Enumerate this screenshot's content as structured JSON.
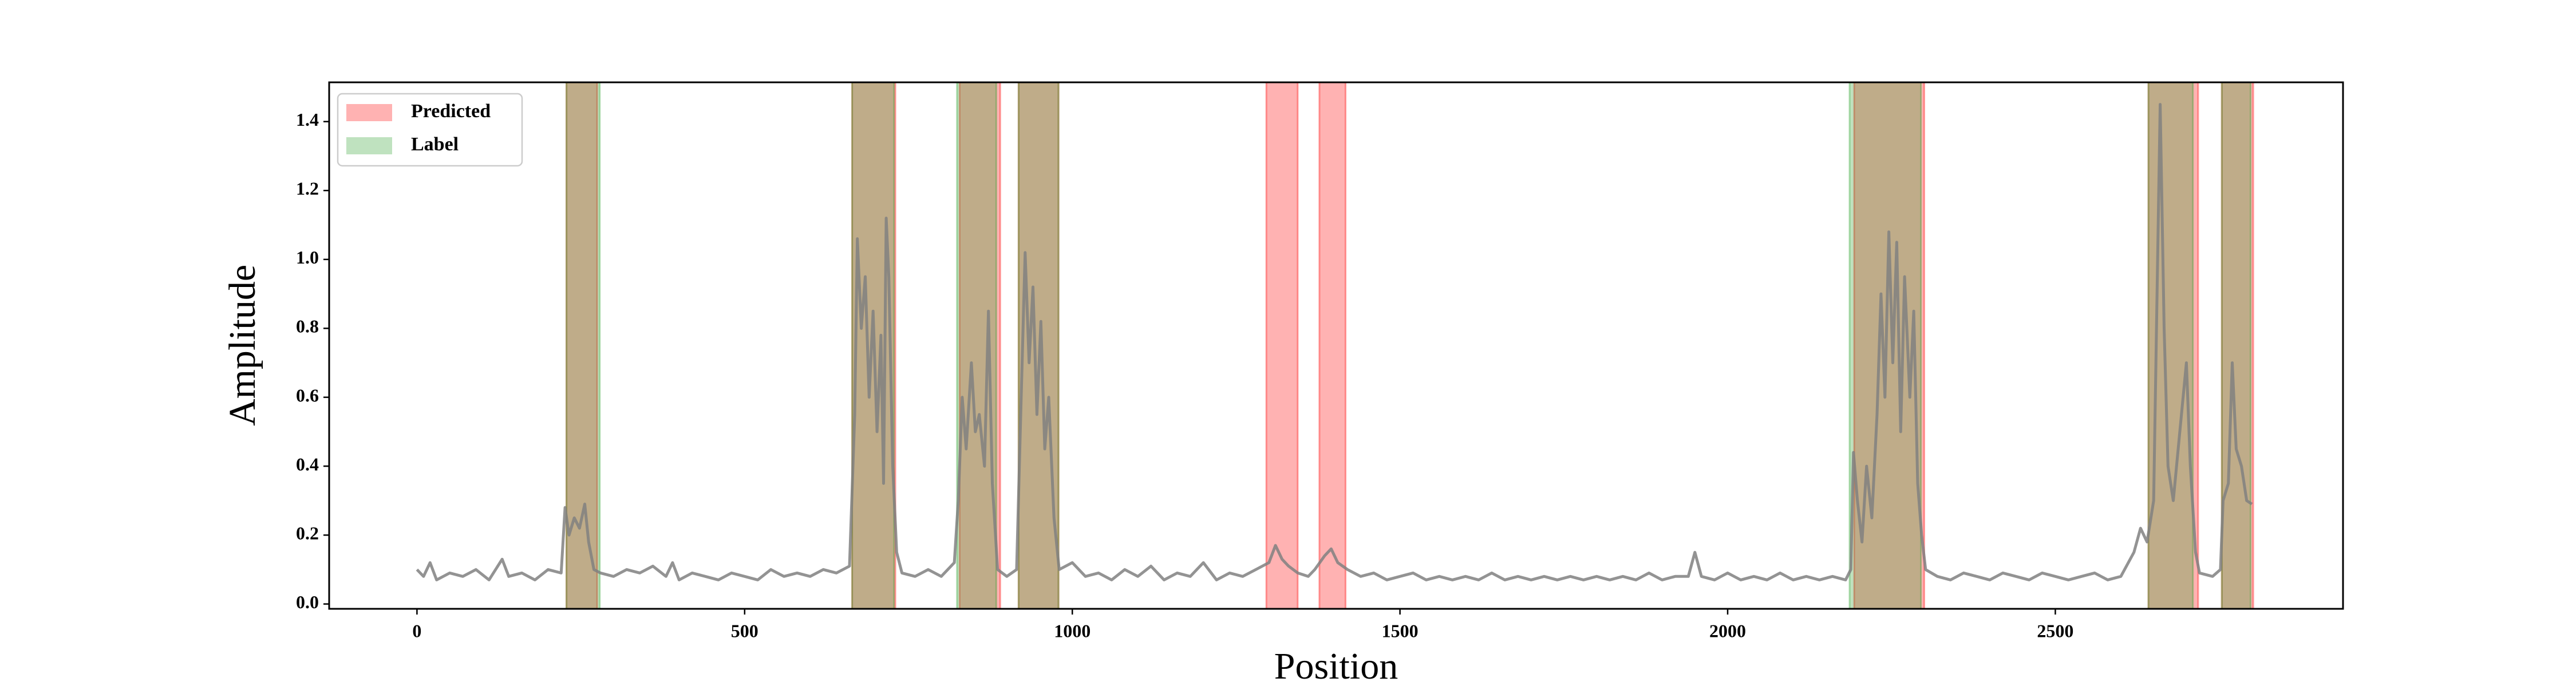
{
  "chart_data": {
    "type": "line",
    "xlabel": "Position",
    "ylabel": "Amplitude",
    "color": "#808080",
    "xlim": [
      -134,
      2939
    ],
    "ylim": [
      -0.014,
      1.514
    ],
    "xticks": [
      0,
      500,
      1000,
      1500,
      2000,
      2500
    ],
    "yticks": [
      {
        "value": 0,
        "label": "0.0"
      },
      0.2,
      0.4,
      0.6,
      0.8,
      {
        "value": 1,
        "label": "1.0"
      },
      1.2,
      1.4
    ],
    "legend": "upper left",
    "spans": [
      {
        "name": "Predicted",
        "color": "#ff0000",
        "ranges": [
          [
            228,
            275
          ],
          [
            664,
            730
          ],
          [
            828,
            890
          ],
          [
            918,
            979
          ],
          [
            1296,
            1344
          ],
          [
            1377,
            1417
          ],
          [
            2193,
            2300
          ],
          [
            2642,
            2718
          ],
          [
            2754,
            2802
          ]
        ]
      },
      {
        "name": "Label",
        "color": "#2ca02c",
        "ranges": [
          [
            228,
            279
          ],
          [
            664,
            728
          ],
          [
            824,
            884
          ],
          [
            918,
            979
          ],
          [
            2186,
            2295
          ],
          [
            2642,
            2710
          ],
          [
            2754,
            2798
          ]
        ]
      }
    ],
    "x": [
      0,
      10,
      20,
      30,
      50,
      70,
      90,
      110,
      130,
      140,
      160,
      180,
      200,
      220,
      226,
      232,
      240,
      248,
      256,
      262,
      270,
      280,
      300,
      320,
      340,
      360,
      380,
      390,
      400,
      420,
      440,
      460,
      480,
      500,
      520,
      540,
      560,
      580,
      600,
      620,
      640,
      660,
      668,
      672,
      678,
      684,
      690,
      696,
      702,
      708,
      712,
      716,
      720,
      726,
      732,
      740,
      760,
      780,
      800,
      820,
      826,
      832,
      838,
      846,
      852,
      858,
      866,
      872,
      878,
      886,
      900,
      915,
      922,
      928,
      934,
      940,
      946,
      952,
      958,
      964,
      972,
      980,
      1000,
      1020,
      1040,
      1060,
      1080,
      1100,
      1120,
      1140,
      1160,
      1180,
      1200,
      1220,
      1240,
      1260,
      1280,
      1300,
      1310,
      1320,
      1330,
      1344,
      1360,
      1370,
      1385,
      1395,
      1405,
      1420,
      1440,
      1460,
      1480,
      1500,
      1520,
      1540,
      1560,
      1580,
      1600,
      1620,
      1640,
      1660,
      1680,
      1700,
      1720,
      1740,
      1760,
      1780,
      1800,
      1820,
      1840,
      1860,
      1880,
      1900,
      1920,
      1940,
      1950,
      1960,
      1980,
      2000,
      2020,
      2040,
      2060,
      2080,
      2100,
      2120,
      2140,
      2160,
      2180,
      2188,
      2192,
      2198,
      2205,
      2212,
      2220,
      2228,
      2234,
      2240,
      2246,
      2252,
      2258,
      2264,
      2270,
      2278,
      2284,
      2290,
      2296,
      2302,
      2320,
      2340,
      2360,
      2380,
      2400,
      2420,
      2440,
      2460,
      2480,
      2500,
      2520,
      2540,
      2560,
      2580,
      2600,
      2620,
      2630,
      2640,
      2650,
      2660,
      2666,
      2672,
      2680,
      2690,
      2700,
      2706,
      2714,
      2720,
      2740,
      2752,
      2756,
      2764,
      2770,
      2776,
      2784,
      2792,
      2800
    ],
    "values": [
      0.1,
      0.08,
      0.12,
      0.07,
      0.09,
      0.08,
      0.1,
      0.07,
      0.13,
      0.08,
      0.09,
      0.07,
      0.1,
      0.09,
      0.28,
      0.2,
      0.25,
      0.22,
      0.29,
      0.18,
      0.1,
      0.09,
      0.08,
      0.1,
      0.09,
      0.11,
      0.08,
      0.12,
      0.07,
      0.09,
      0.08,
      0.07,
      0.09,
      0.08,
      0.07,
      0.1,
      0.08,
      0.09,
      0.08,
      0.1,
      0.09,
      0.11,
      0.55,
      1.06,
      0.8,
      0.95,
      0.6,
      0.85,
      0.5,
      0.78,
      0.35,
      1.12,
      0.95,
      0.4,
      0.15,
      0.09,
      0.08,
      0.1,
      0.08,
      0.12,
      0.3,
      0.6,
      0.45,
      0.7,
      0.5,
      0.55,
      0.4,
      0.85,
      0.35,
      0.1,
      0.08,
      0.1,
      0.6,
      1.02,
      0.7,
      0.92,
      0.55,
      0.82,
      0.45,
      0.6,
      0.25,
      0.1,
      0.12,
      0.08,
      0.09,
      0.07,
      0.1,
      0.08,
      0.11,
      0.07,
      0.09,
      0.08,
      0.12,
      0.07,
      0.09,
      0.08,
      0.1,
      0.12,
      0.17,
      0.13,
      0.11,
      0.09,
      0.08,
      0.1,
      0.14,
      0.16,
      0.12,
      0.1,
      0.08,
      0.09,
      0.07,
      0.08,
      0.09,
      0.07,
      0.08,
      0.07,
      0.08,
      0.07,
      0.09,
      0.07,
      0.08,
      0.07,
      0.08,
      0.07,
      0.08,
      0.07,
      0.08,
      0.07,
      0.08,
      0.07,
      0.09,
      0.07,
      0.08,
      0.08,
      0.15,
      0.08,
      0.07,
      0.09,
      0.07,
      0.08,
      0.07,
      0.09,
      0.07,
      0.08,
      0.07,
      0.08,
      0.07,
      0.1,
      0.44,
      0.3,
      0.18,
      0.4,
      0.25,
      0.55,
      0.9,
      0.6,
      1.08,
      0.7,
      1.05,
      0.5,
      0.95,
      0.6,
      0.85,
      0.35,
      0.2,
      0.1,
      0.08,
      0.07,
      0.09,
      0.08,
      0.07,
      0.09,
      0.08,
      0.07,
      0.09,
      0.08,
      0.07,
      0.08,
      0.09,
      0.07,
      0.08,
      0.15,
      0.22,
      0.18,
      0.3,
      1.45,
      0.8,
      0.4,
      0.3,
      0.5,
      0.7,
      0.4,
      0.15,
      0.09,
      0.08,
      0.1,
      0.3,
      0.35,
      0.7,
      0.45,
      0.4,
      0.3,
      0.29
    ]
  }
}
